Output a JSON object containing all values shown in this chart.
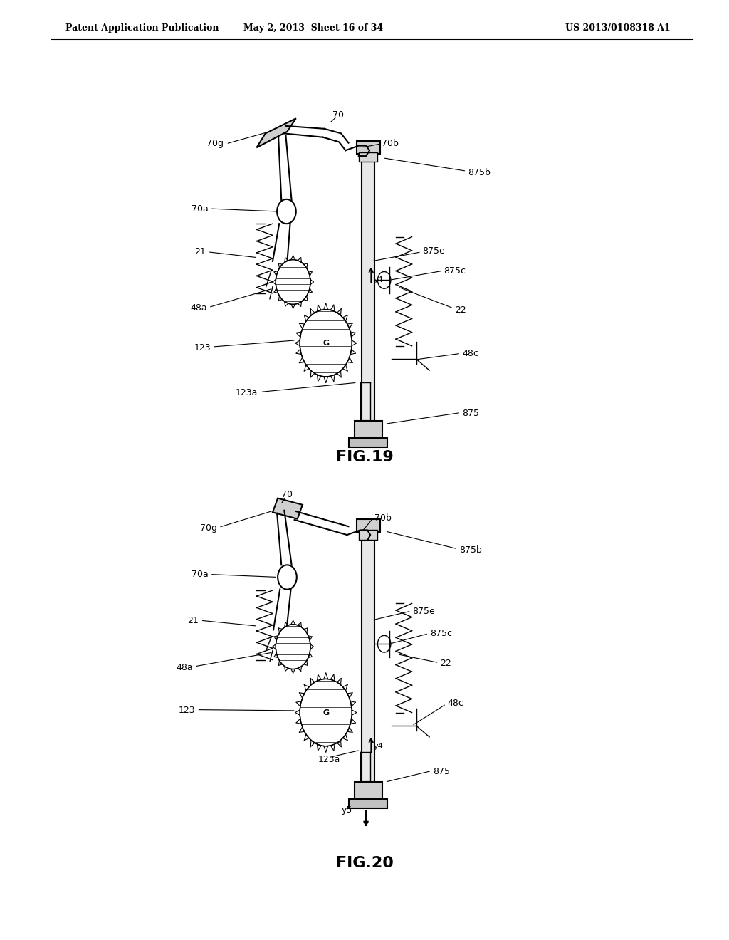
{
  "background_color": "#ffffff",
  "header_left": "Patent Application Publication",
  "header_mid": "May 2, 2013  Sheet 16 of 34",
  "header_right": "US 2013/0108318 A1",
  "fig19_label": "FIG.19",
  "fig20_label": "FIG.20"
}
